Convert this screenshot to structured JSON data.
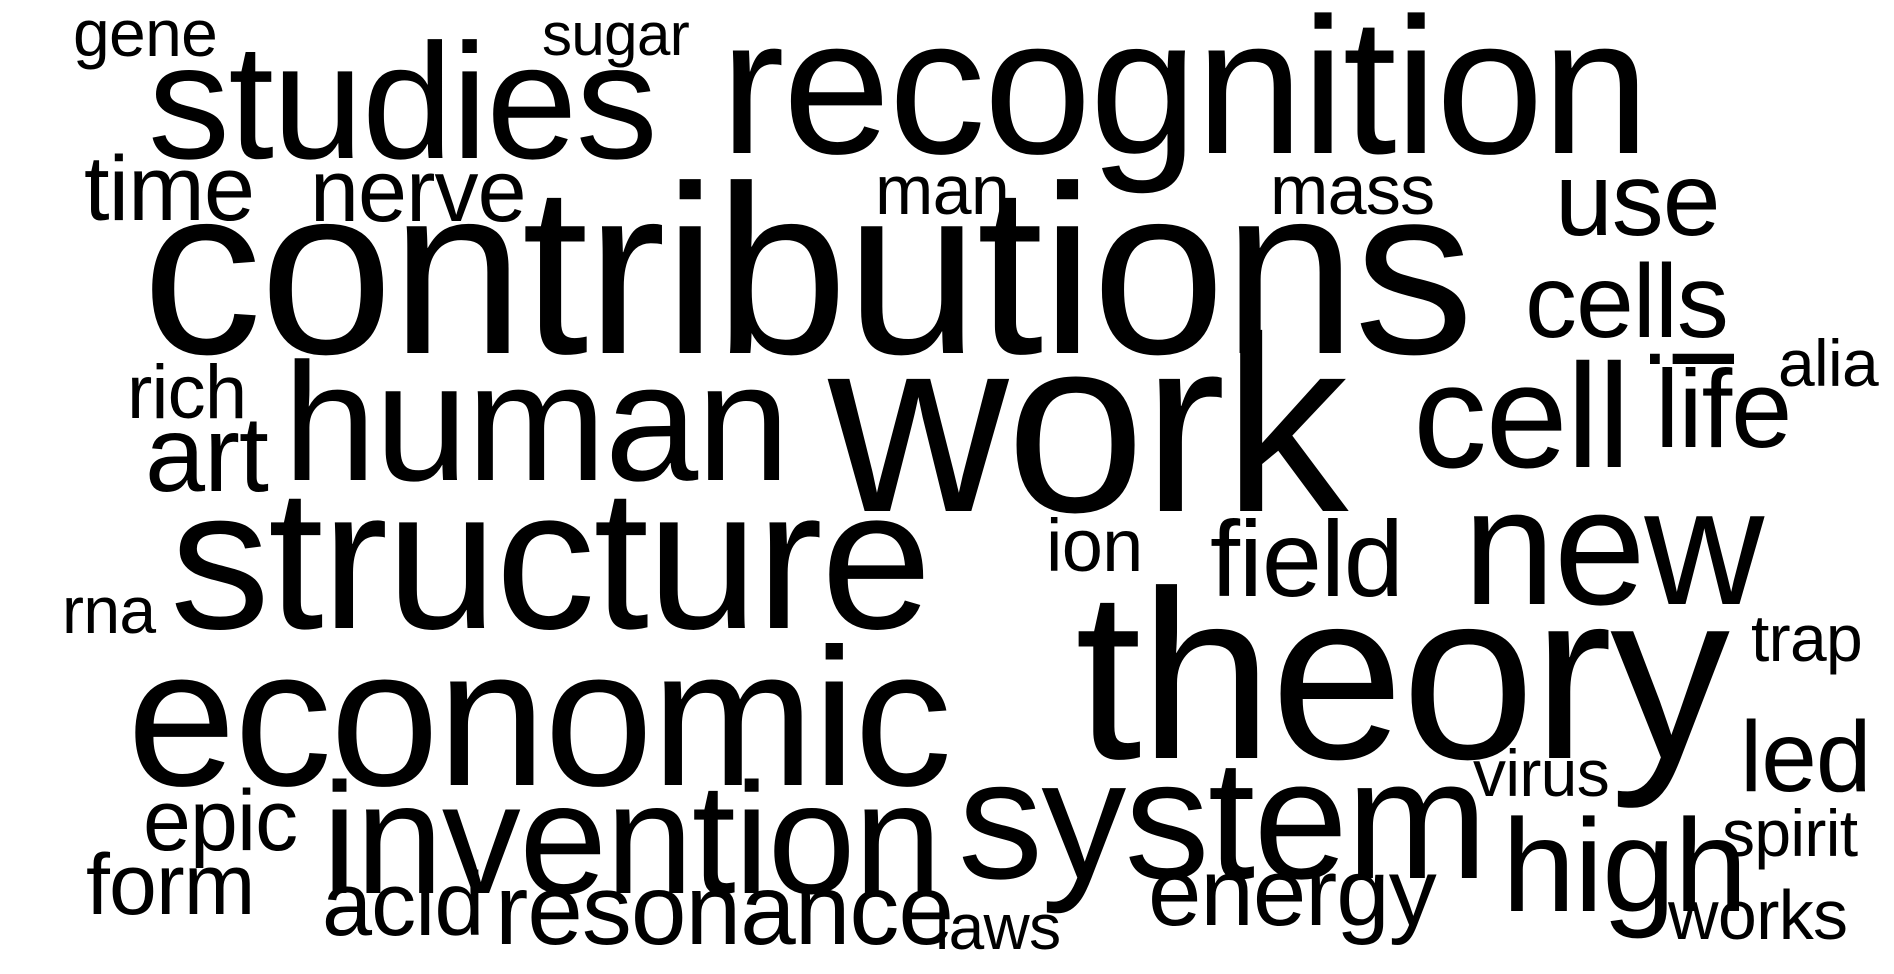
{
  "words": {
    "gene": "gene",
    "sugar": "sugar",
    "studies": "studies",
    "recognition": "recognition",
    "time": "time",
    "nerve": "nerve",
    "man": "man",
    "mass": "mass",
    "use": "use",
    "contributions": "contributions",
    "cells": "cells",
    "alia": "alia",
    "rich": "rich",
    "human": "human",
    "work": "work",
    "cell": "cell",
    "i_bar": "i",
    "life": "life",
    "art": "art",
    "structure": "structure",
    "ion": "ion",
    "field": "field",
    "new": "new",
    "rna": "rna",
    "trap": "trap",
    "theory": "theory",
    "economic": "economic",
    "led": "led",
    "virus": "virus",
    "system": "system",
    "epic": "epic",
    "invention": "invention",
    "high": "high",
    "spirit": "spirit",
    "form": "form",
    "acid": "acid",
    "resonance": "resonance",
    "energy": "energy",
    "laws": "laws",
    "works": "works"
  },
  "colors": {
    "text": "#000000",
    "background": "#ffffff"
  }
}
